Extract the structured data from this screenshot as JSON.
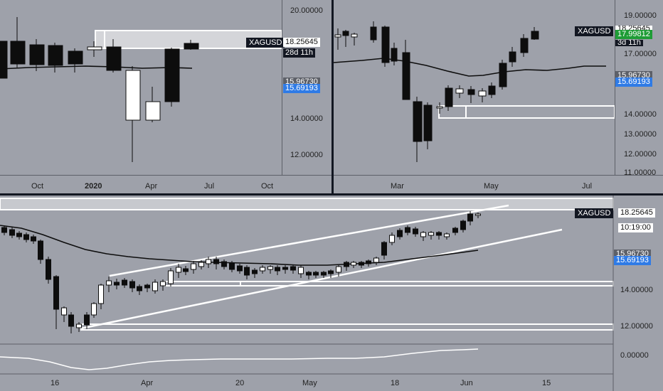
{
  "colors": {
    "background": "#9ea1aa",
    "candle_up": "#ffffff",
    "candle_down": "#0d0d0d",
    "price_tag_blue": "#2f7be6",
    "price_tag_green": "#1e9c36",
    "divider": "#131722",
    "drawing": "#ffffff"
  },
  "top_left": {
    "symbol": "XAGUSD",
    "price": "18.25645",
    "countdown": "28d 11h",
    "covered_price": "15.96730",
    "blue_price": "15.69193",
    "y_ticks": [
      "20.00000",
      "14.00000",
      "12.00000"
    ],
    "x_ticks": [
      "Oct",
      "2020",
      "Apr",
      "Jul",
      "Oct"
    ]
  },
  "top_right": {
    "symbol": "XAGUSD",
    "price_top": "18.25645",
    "price_green": "17.99812",
    "countdown": "3d 11h",
    "covered_price": "15.96730",
    "blue_price": "15.69193",
    "y_ticks": [
      "19.00000",
      "17.00000",
      "14.00000",
      "13.00000",
      "12.00000",
      "11.00000"
    ],
    "x_ticks": [
      "Mar",
      "May",
      "Jul"
    ]
  },
  "bottom": {
    "symbol": "XAGUSD",
    "price": "18.25645",
    "countdown": "10:19:00",
    "covered_price": "15.96730",
    "blue_price": "15.69193",
    "y_ticks": [
      "14.00000",
      "12.00000"
    ],
    "x_ticks": [
      "16",
      "Apr",
      "20",
      "May",
      "18",
      "Jun",
      "15"
    ],
    "oscillator": {
      "tick": "0.00000"
    }
  }
}
